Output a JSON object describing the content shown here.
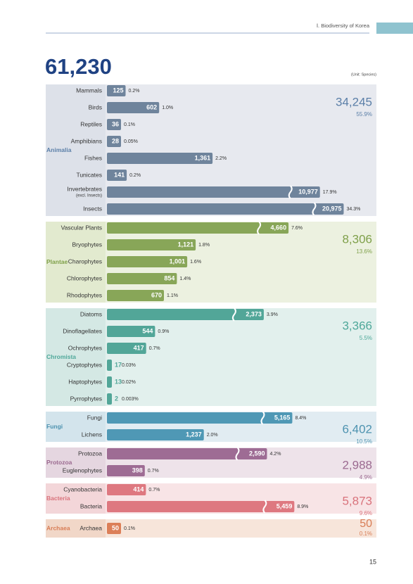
{
  "header": {
    "section": "Ⅰ. Biodiversity of Korea",
    "total": "61,230",
    "unit": "(Unit: Species)"
  },
  "groups": [
    {
      "name": "Animalia",
      "total": "34,245",
      "percent": "55.9%",
      "rows": [
        {
          "label": "Mammals",
          "value": "125",
          "percent": "0.2%"
        },
        {
          "label": "Birds",
          "value": "602",
          "percent": "1.0%"
        },
        {
          "label": "Reptiles",
          "value": "36",
          "percent": "0.1%"
        },
        {
          "label": "Amphibians",
          "value": "28",
          "percent": "0.05%"
        },
        {
          "label": "Fishes",
          "value": "1,361",
          "percent": "2.2%"
        },
        {
          "label": "Tunicates",
          "value": "141",
          "percent": "0.2%"
        },
        {
          "label": "Invertebrates",
          "sublabel": "(excl. Insects)",
          "value": "10,977",
          "percent": "17.9%"
        },
        {
          "label": "Insects",
          "value": "20,975",
          "percent": "34.3%"
        }
      ]
    },
    {
      "name": "Plantae",
      "total": "8,306",
      "percent": "13.6%",
      "rows": [
        {
          "label": "Vascular Plants",
          "value": "4,660",
          "percent": "7.6%"
        },
        {
          "label": "Bryophytes",
          "value": "1,121",
          "percent": "1.8%"
        },
        {
          "label": "Charophytes",
          "value": "1,001",
          "percent": "1.6%"
        },
        {
          "label": "Chlorophytes",
          "value": "854",
          "percent": "1.4%"
        },
        {
          "label": "Rhodophytes",
          "value": "670",
          "percent": "1.1%"
        }
      ]
    },
    {
      "name": "Chromista",
      "total": "3,366",
      "percent": "5.5%",
      "rows": [
        {
          "label": "Diatoms",
          "value": "2,373",
          "percent": "3.9%"
        },
        {
          "label": "Dinoflagellates",
          "value": "544",
          "percent": "0.9%"
        },
        {
          "label": "Ochrophytes",
          "value": "417",
          "percent": "0.7%"
        },
        {
          "label": "Cryptophytes",
          "value": "17",
          "percent": "0.03%"
        },
        {
          "label": "Haptophytes",
          "value": "13",
          "percent": "0.02%"
        },
        {
          "label": "Pyrrophytes",
          "value": "2",
          "percent": "0.003%"
        }
      ]
    },
    {
      "name": "Fungi",
      "total": "6,402",
      "percent": "10.5%",
      "rows": [
        {
          "label": "Fungi",
          "value": "5,165",
          "percent": "8.4%"
        },
        {
          "label": "Lichens",
          "value": "1,237",
          "percent": "2.0%"
        }
      ]
    },
    {
      "name": "Protozoa",
      "total": "2,988",
      "percent": "4.9%",
      "rows": [
        {
          "label": "Protozoa",
          "value": "2,590",
          "percent": "4.2%"
        },
        {
          "label": "Euglenophytes",
          "value": "398",
          "percent": "0.7%"
        }
      ]
    },
    {
      "name": "Bacteria",
      "total": "5,873",
      "percent": "9.6%",
      "rows": [
        {
          "label": "Cyanobacteria",
          "value": "414",
          "percent": "0.7%"
        },
        {
          "label": "Bacteria",
          "value": "5,459",
          "percent": "8.9%"
        }
      ]
    },
    {
      "name": "Archaea",
      "total": "50",
      "percent": "0.1%",
      "rows": [
        {
          "label": "Archaea",
          "value": "50",
          "percent": "0.1%"
        }
      ]
    }
  ],
  "page_number": "15"
}
